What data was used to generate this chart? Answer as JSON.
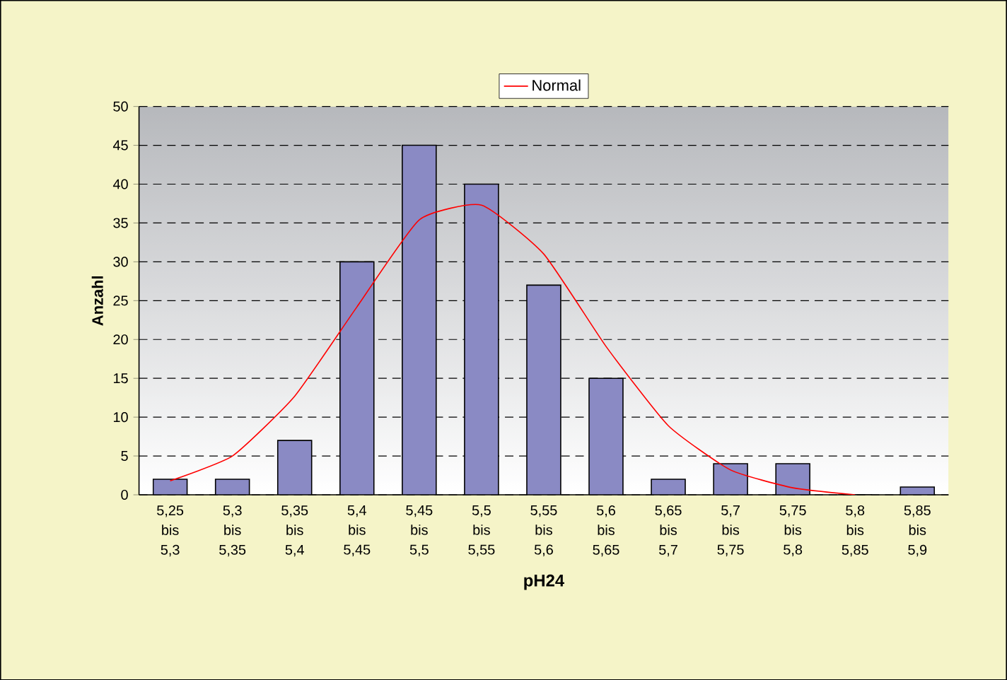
{
  "chart_data": {
    "type": "bar",
    "xlabel": "pH24",
    "ylabel": "Anzahl",
    "categories": [
      "5,25 bis 5,3",
      "5,3 bis 5,35",
      "5,35 bis 5,4",
      "5,4 bis 5,45",
      "5,45 bis 5,5",
      "5,5 bis 5,55",
      "5,55 bis 5,6",
      "5,6 bis 5,65",
      "5,65 bis 5,7",
      "5,7 bis 5,75",
      "5,75 bis 5,8",
      "5,8 bis 5,85",
      "5,85 bis 5,9"
    ],
    "series": [
      {
        "color": "#8a8ac4",
        "values": [
          2,
          2,
          7,
          30,
          45,
          40,
          27,
          15,
          2,
          4,
          4,
          0,
          1
        ]
      },
      {
        "type": "line",
        "name": "Normal",
        "color": "#ff0000",
        "values": [
          1.8,
          5,
          12.7,
          24.2,
          35.4,
          37.3,
          31,
          19.1,
          8.9,
          3.2,
          0.9,
          0,
          null
        ]
      }
    ],
    "ylim": [
      0,
      50
    ],
    "yticks": [
      0,
      5,
      10,
      15,
      20,
      25,
      30,
      35,
      40,
      45,
      50
    ],
    "grid": "y",
    "legend": "top",
    "marker": "none",
    "line_style": "solid"
  }
}
